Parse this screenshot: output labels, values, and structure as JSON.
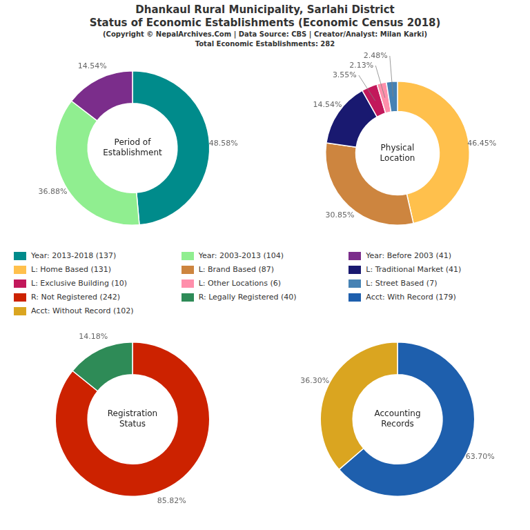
{
  "title": [
    "Dhankaul Rural Municipality, Sarlahi District",
    "Status of Economic Establishments (Economic Census 2018)"
  ],
  "subtitle": [
    "(Copyright © NepalArchives.Com | Data Source: CBS | Creator/Analyst: Milan Karki)",
    "Total Economic Establishments: 282"
  ],
  "chart_data": [
    {
      "type": "doughnut",
      "title": "Period of\nEstablishment",
      "categories": [
        "Year: 2013-2018 (137)",
        "Year: 2003-2013 (104)",
        "Year: Before 2003 (41)"
      ],
      "values": [
        48.58,
        36.88,
        14.54
      ],
      "value_labels": [
        "48.58%",
        "36.88%",
        "14.54%"
      ],
      "colors": [
        "#008B8B",
        "#90EE90",
        "#7B2D8B"
      ],
      "data_labels": true
    },
    {
      "type": "doughnut",
      "title": "Physical\nLocation",
      "categories": [
        "L: Home Based (131)",
        "L: Brand Based (87)",
        "L: Traditional Market (41)",
        "L: Exclusive Building (10)",
        "L: Other Locations (6)",
        "L: Street Based (7)"
      ],
      "values": [
        46.45,
        30.85,
        14.54,
        3.55,
        2.13,
        2.48
      ],
      "value_labels": [
        "46.45%",
        "30.85%",
        "14.54%",
        "3.55%",
        "2.13%",
        "2.48%"
      ],
      "colors": [
        "#FFC04C",
        "#CD853F",
        "#191970",
        "#C2185B",
        "#FF8FAB",
        "#4682B4"
      ],
      "data_labels": true
    },
    {
      "type": "doughnut",
      "title": "Registration\nStatus",
      "categories": [
        "R: Not Registered (242)",
        "R: Legally Registered (40)"
      ],
      "values": [
        85.82,
        14.18
      ],
      "value_labels": [
        "85.82%",
        "14.18%"
      ],
      "colors": [
        "#CC2200",
        "#2E8B57"
      ],
      "data_labels": true
    },
    {
      "type": "doughnut",
      "title": "Accounting\nRecords",
      "categories": [
        "Acct: With Record (179)",
        "Acct: Without Record (102)"
      ],
      "values": [
        63.7,
        36.3
      ],
      "value_labels": [
        "63.70%",
        "36.30%"
      ],
      "colors": [
        "#1E5FAD",
        "#DAA520"
      ],
      "data_labels": true
    }
  ]
}
